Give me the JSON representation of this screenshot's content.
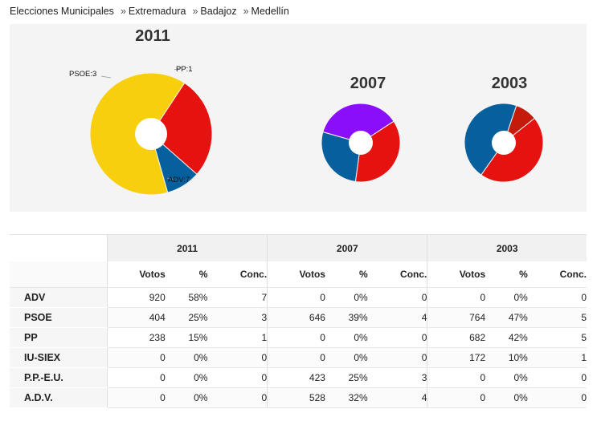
{
  "breadcrumb": {
    "items": [
      "Elecciones Municipales",
      "Extremadura",
      "Badajoz",
      "Medellín"
    ],
    "separator": "»"
  },
  "colors": {
    "ADV": "#f7cf0c",
    "PSOE": "#e5120f",
    "PP": "#06609e",
    "purple": "#8a0efa",
    "darkred": "#c41c0b"
  },
  "charts": [
    {
      "year": "2011",
      "slices": [
        {
          "party": "ADV",
          "value": 7,
          "color": "#f7cf0c",
          "label": "ADV:7"
        },
        {
          "party": "PSOE",
          "value": 3,
          "color": "#e5120f",
          "label": "PSOE:3"
        },
        {
          "party": "PP",
          "value": 1,
          "color": "#06609e",
          "label": "PP:1"
        }
      ]
    },
    {
      "year": "2007",
      "slices": [
        {
          "party": "PSOE",
          "value": 4,
          "color": "#e5120f"
        },
        {
          "party": "PP",
          "value": 3,
          "color": "#06609e"
        },
        {
          "party": "A.D.V.",
          "value": 4,
          "color": "#8a0efa"
        }
      ]
    },
    {
      "year": "2003",
      "slices": [
        {
          "party": "IU-SIEX",
          "value": 1,
          "color": "#c41c0b"
        },
        {
          "party": "PSOE",
          "value": 5,
          "color": "#e5120f"
        },
        {
          "party": "PP",
          "value": 5,
          "color": "#06609e"
        }
      ]
    }
  ],
  "table": {
    "years": [
      "2011",
      "2007",
      "2003"
    ],
    "columns": [
      "Votos",
      "%",
      "Conc."
    ],
    "rows": [
      {
        "party": "ADV",
        "values": [
          [
            "920",
            "58%",
            "7"
          ],
          [
            "0",
            "0%",
            "0"
          ],
          [
            "0",
            "0%",
            "0"
          ]
        ]
      },
      {
        "party": "PSOE",
        "values": [
          [
            "404",
            "25%",
            "3"
          ],
          [
            "646",
            "39%",
            "4"
          ],
          [
            "764",
            "47%",
            "5"
          ]
        ]
      },
      {
        "party": "PP",
        "values": [
          [
            "238",
            "15%",
            "1"
          ],
          [
            "0",
            "0%",
            "0"
          ],
          [
            "682",
            "42%",
            "5"
          ]
        ]
      },
      {
        "party": "IU-SIEX",
        "values": [
          [
            "0",
            "0%",
            "0"
          ],
          [
            "0",
            "0%",
            "0"
          ],
          [
            "172",
            "10%",
            "1"
          ]
        ]
      },
      {
        "party": "P.P.-E.U.",
        "values": [
          [
            "0",
            "0%",
            "0"
          ],
          [
            "423",
            "25%",
            "3"
          ],
          [
            "0",
            "0%",
            "0"
          ]
        ]
      },
      {
        "party": "A.D.V.",
        "values": [
          [
            "0",
            "0%",
            "0"
          ],
          [
            "528",
            "32%",
            "4"
          ],
          [
            "0",
            "0%",
            "0"
          ]
        ]
      }
    ]
  }
}
